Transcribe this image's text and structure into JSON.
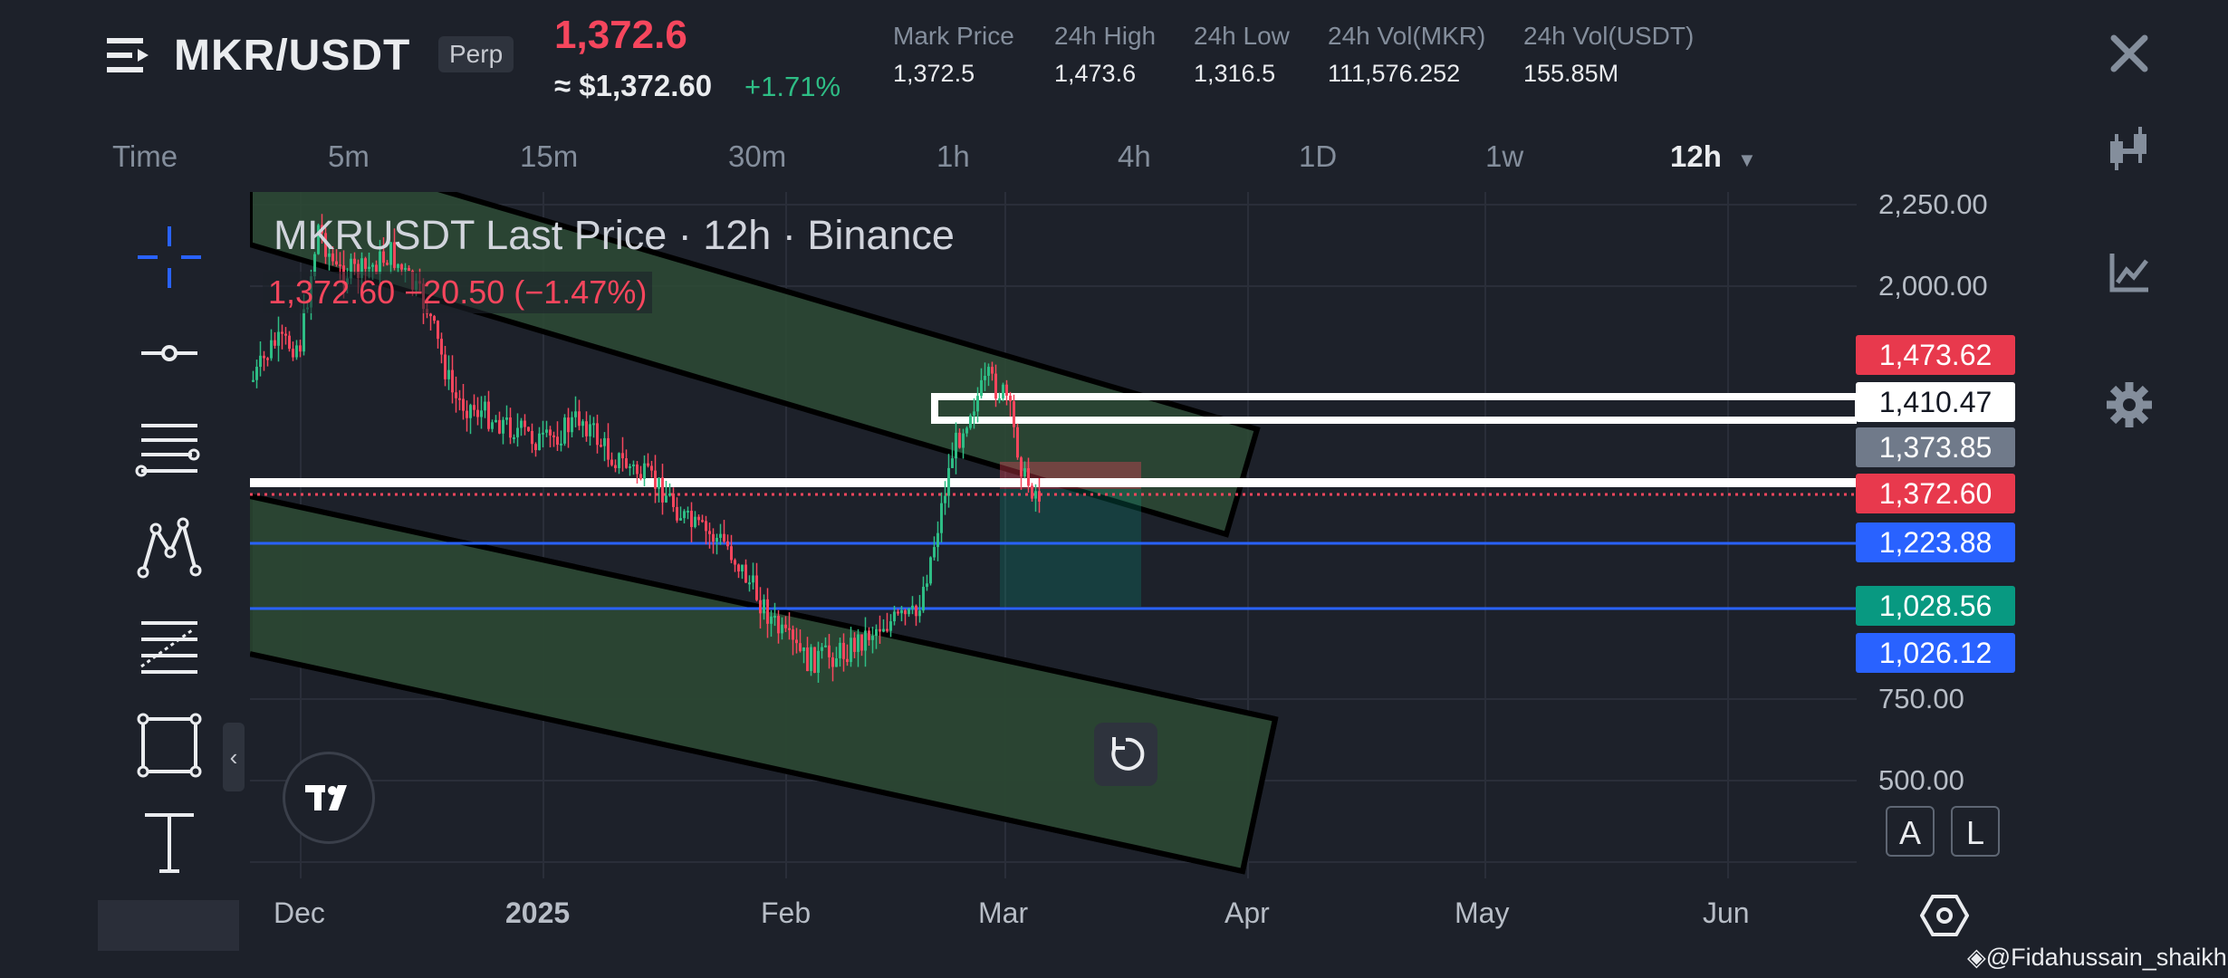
{
  "header": {
    "symbol": "MKR/USDT",
    "contract_type": "Perp",
    "last_price": "1,372.6",
    "usd_price": "≈ $1,372.60",
    "change_pct": "+1.71%",
    "stats": [
      {
        "label": "Mark Price",
        "value": "1,372.5"
      },
      {
        "label": "24h High",
        "value": "1,473.6"
      },
      {
        "label": "24h Low",
        "value": "1,316.5"
      },
      {
        "label": "24h Vol(MKR)",
        "value": "111,576.252"
      },
      {
        "label": "24h Vol(USDT)",
        "value": "155.85M"
      }
    ]
  },
  "timeframes": {
    "items": [
      "Time",
      "5m",
      "15m",
      "30m",
      "1h",
      "4h",
      "1D",
      "1w"
    ],
    "selected": "12h"
  },
  "legend": {
    "title": "MKRUSDT Last Price · 12h · Binance",
    "ohlc": "1,372.60 −20.50 (−1.47%)"
  },
  "price_axis": {
    "labels": [
      "2,250.00",
      "2,000.00",
      "750.00",
      "500.00"
    ],
    "tags": [
      {
        "value": "1,473.62",
        "color": "#e8394d"
      },
      {
        "value": "1,410.47",
        "color": "#ffffff"
      },
      {
        "value": "1,373.85",
        "color": "#707a8a"
      },
      {
        "value": "1,372.60",
        "color": "#e8394d"
      },
      {
        "value": "1,223.88",
        "color": "#2962ff"
      },
      {
        "value": "1,028.56",
        "color": "#089981"
      },
      {
        "value": "1,026.12",
        "color": "#2962ff"
      }
    ]
  },
  "date_axis": {
    "labels": [
      "Dec",
      "2025",
      "Feb",
      "Mar",
      "Apr",
      "May",
      "Jun"
    ]
  },
  "chart_data": {
    "type": "candlestick",
    "interval": "12h",
    "y_axis_labels": [
      2250,
      2000,
      750,
      500
    ],
    "horizontal_levels": [
      1473.62,
      1410.47,
      1373.85,
      1372.6,
      1223.88,
      1028.56,
      1026.12
    ],
    "current_price": 1372.6
  },
  "scale_buttons": {
    "auto": "A",
    "log": "L"
  },
  "watermark": "@Fidahussain_shaikh",
  "colors": {
    "background": "#1d212a",
    "up": "#2ebd85",
    "down": "#f6465d",
    "channel_fill": "#2d4a35",
    "level_blue": "#2962ff"
  }
}
